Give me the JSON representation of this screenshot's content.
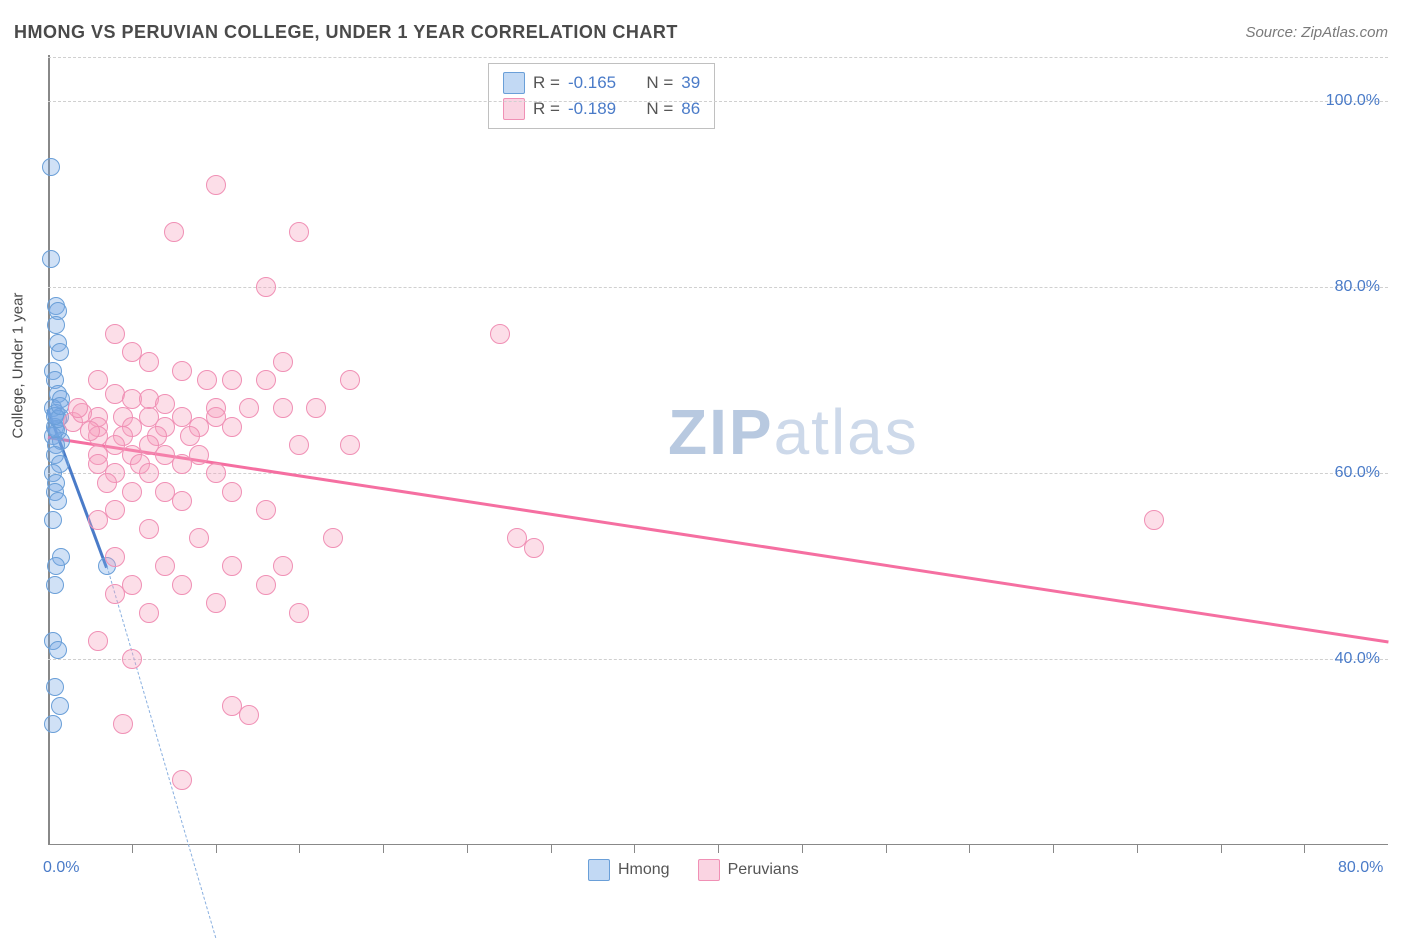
{
  "title": "HMONG VS PERUVIAN COLLEGE, UNDER 1 YEAR CORRELATION CHART",
  "source": "Source: ZipAtlas.com",
  "y_axis_label": "College, Under 1 year",
  "watermark_zip": "ZIP",
  "watermark_atlas": "atlas",
  "chart": {
    "type": "scatter",
    "xlim": [
      0,
      80
    ],
    "ylim": [
      20,
      105
    ],
    "x_ticks": [
      0,
      80
    ],
    "x_tick_labels": [
      "0.0%",
      "80.0%"
    ],
    "x_minor_ticks": [
      5,
      10,
      15,
      20,
      25,
      30,
      35,
      40,
      45,
      50,
      55,
      60,
      65,
      70,
      75
    ],
    "y_ticks": [
      40,
      60,
      80,
      100
    ],
    "y_tick_labels": [
      "40.0%",
      "60.0%",
      "80.0%",
      "100.0%"
    ],
    "grid_color": "#d0d0d0",
    "background_color": "#ffffff",
    "marker_radius_blue": 9,
    "marker_radius_pink": 10,
    "series": [
      {
        "name": "Hmong",
        "color_fill": "rgba(120,170,230,0.35)",
        "color_stroke": "#6a9fd8",
        "r_value": "-0.165",
        "n_value": "39",
        "trend": {
          "x1": 0,
          "y1": 67,
          "x2": 3.5,
          "y2": 50,
          "color": "#4a7bc8",
          "extrap_dash": true,
          "extrap_x2": 10,
          "extrap_y2": 10,
          "width": 2.5
        },
        "points": [
          [
            0.2,
            93
          ],
          [
            0.2,
            83
          ],
          [
            0.5,
            78
          ],
          [
            0.6,
            77.5
          ],
          [
            0.5,
            76
          ],
          [
            0.6,
            74
          ],
          [
            0.7,
            73
          ],
          [
            0.3,
            71
          ],
          [
            0.4,
            70
          ],
          [
            0.6,
            68.5
          ],
          [
            0.8,
            68
          ],
          [
            0.3,
            67
          ],
          [
            0.5,
            66.5
          ],
          [
            0.7,
            66
          ],
          [
            0.4,
            65
          ],
          [
            0.6,
            64.5
          ],
          [
            0.3,
            64
          ],
          [
            0.8,
            63.5
          ],
          [
            0.5,
            63
          ],
          [
            0.4,
            62
          ],
          [
            0.7,
            61
          ],
          [
            0.3,
            60
          ],
          [
            0.5,
            59
          ],
          [
            0.4,
            58
          ],
          [
            0.6,
            57
          ],
          [
            0.3,
            55
          ],
          [
            0.8,
            51
          ],
          [
            0.5,
            50
          ],
          [
            3.5,
            50
          ],
          [
            0.4,
            48
          ],
          [
            0.3,
            42
          ],
          [
            0.6,
            41
          ],
          [
            0.4,
            37
          ],
          [
            0.7,
            35
          ],
          [
            0.3,
            33
          ],
          [
            0.5,
            64.8
          ],
          [
            0.6,
            65.8
          ],
          [
            0.4,
            66.2
          ],
          [
            0.7,
            67.2
          ]
        ]
      },
      {
        "name": "Peruvians",
        "color_fill": "rgba(245,160,190,0.35)",
        "color_stroke": "#f090b5",
        "r_value": "-0.189",
        "n_value": "86",
        "trend": {
          "x1": 0,
          "y1": 64,
          "x2": 80,
          "y2": 42,
          "color": "#f56fa1",
          "width": 2.5
        },
        "points": [
          [
            10,
            91
          ],
          [
            7.5,
            86
          ],
          [
            15,
            86
          ],
          [
            13,
            80
          ],
          [
            4,
            75
          ],
          [
            27,
            75
          ],
          [
            5,
            73
          ],
          [
            6,
            72
          ],
          [
            14,
            72
          ],
          [
            8,
            71
          ],
          [
            3,
            70
          ],
          [
            9.5,
            70
          ],
          [
            11,
            70
          ],
          [
            13,
            70
          ],
          [
            18,
            70
          ],
          [
            4,
            68.5
          ],
          [
            5,
            68
          ],
          [
            6,
            68
          ],
          [
            7,
            67.5
          ],
          [
            10,
            67
          ],
          [
            12,
            67
          ],
          [
            14,
            67
          ],
          [
            16,
            67
          ],
          [
            3,
            66
          ],
          [
            4.5,
            66
          ],
          [
            6,
            66
          ],
          [
            8,
            66
          ],
          [
            10,
            66
          ],
          [
            3,
            65
          ],
          [
            5,
            65
          ],
          [
            7,
            65
          ],
          [
            9,
            65
          ],
          [
            11,
            65
          ],
          [
            3,
            64
          ],
          [
            4.5,
            64
          ],
          [
            6.5,
            64
          ],
          [
            8.5,
            64
          ],
          [
            4,
            63
          ],
          [
            6,
            63
          ],
          [
            15,
            63
          ],
          [
            18,
            63
          ],
          [
            3,
            62
          ],
          [
            5,
            62
          ],
          [
            7,
            62
          ],
          [
            9,
            62
          ],
          [
            3,
            61
          ],
          [
            5.5,
            61
          ],
          [
            8,
            61
          ],
          [
            4,
            60
          ],
          [
            6,
            60
          ],
          [
            10,
            60
          ],
          [
            3.5,
            59
          ],
          [
            5,
            58
          ],
          [
            7,
            58
          ],
          [
            11,
            58
          ],
          [
            8,
            57
          ],
          [
            4,
            56
          ],
          [
            13,
            56
          ],
          [
            3,
            55
          ],
          [
            6,
            54
          ],
          [
            9,
            53
          ],
          [
            17,
            53
          ],
          [
            28,
            53
          ],
          [
            29,
            52
          ],
          [
            66,
            55
          ],
          [
            4,
            51
          ],
          [
            7,
            50
          ],
          [
            11,
            50
          ],
          [
            14,
            50
          ],
          [
            5,
            48
          ],
          [
            8,
            48
          ],
          [
            13,
            48
          ],
          [
            4,
            47
          ],
          [
            10,
            46
          ],
          [
            6,
            45
          ],
          [
            15,
            45
          ],
          [
            3,
            42
          ],
          [
            5,
            40
          ],
          [
            11,
            35
          ],
          [
            12,
            34
          ],
          [
            4.5,
            33
          ],
          [
            8,
            27
          ],
          [
            1.5,
            65.5
          ],
          [
            2,
            66.5
          ],
          [
            2.5,
            64.5
          ],
          [
            1.8,
            67
          ]
        ]
      }
    ]
  },
  "legend_bottom": {
    "items": [
      {
        "label": "Hmong",
        "swatch": "blue"
      },
      {
        "label": "Peruvians",
        "swatch": "pink"
      }
    ]
  }
}
